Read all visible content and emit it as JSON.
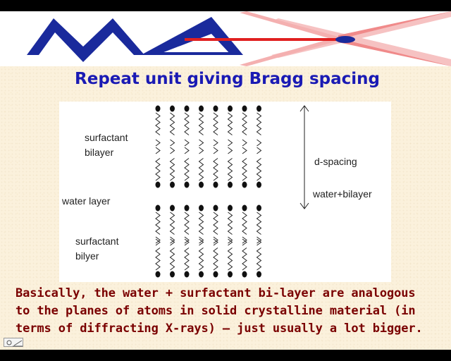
{
  "banner": {
    "logo": "MAX",
    "logo_name": "max-logo"
  },
  "title": "Repeat unit giving Bragg spacing",
  "diagram": {
    "labels": {
      "surfactant_top": [
        "surfactant",
        "bilayer"
      ],
      "water_layer": "water layer",
      "surfactant_bottom": [
        "surfactant",
        "bilyer"
      ],
      "d_spacing": "d-spacing",
      "water_bilayer": "water+bilayer"
    },
    "molecule_count_per_row": 8,
    "colors": {
      "lines": "#222222",
      "heads": "#111111",
      "background": "#ffffff"
    }
  },
  "caption": [
    "Basically, the water + surfactant bi-layer are analogous",
    "to the planes of atoms in solid crystalline material (in",
    "terms of diffracting X-rays) – just usually a lot bigger."
  ],
  "colors": {
    "title": "#1a1ab4",
    "caption": "#7a0000",
    "logo_blue": "#1a2a9c",
    "logo_red": "#e02020",
    "logo_pink": "#f4b0b0",
    "slide_bg": "#fbf1dc"
  },
  "icons": {
    "nav": "slide-nav-icon"
  }
}
